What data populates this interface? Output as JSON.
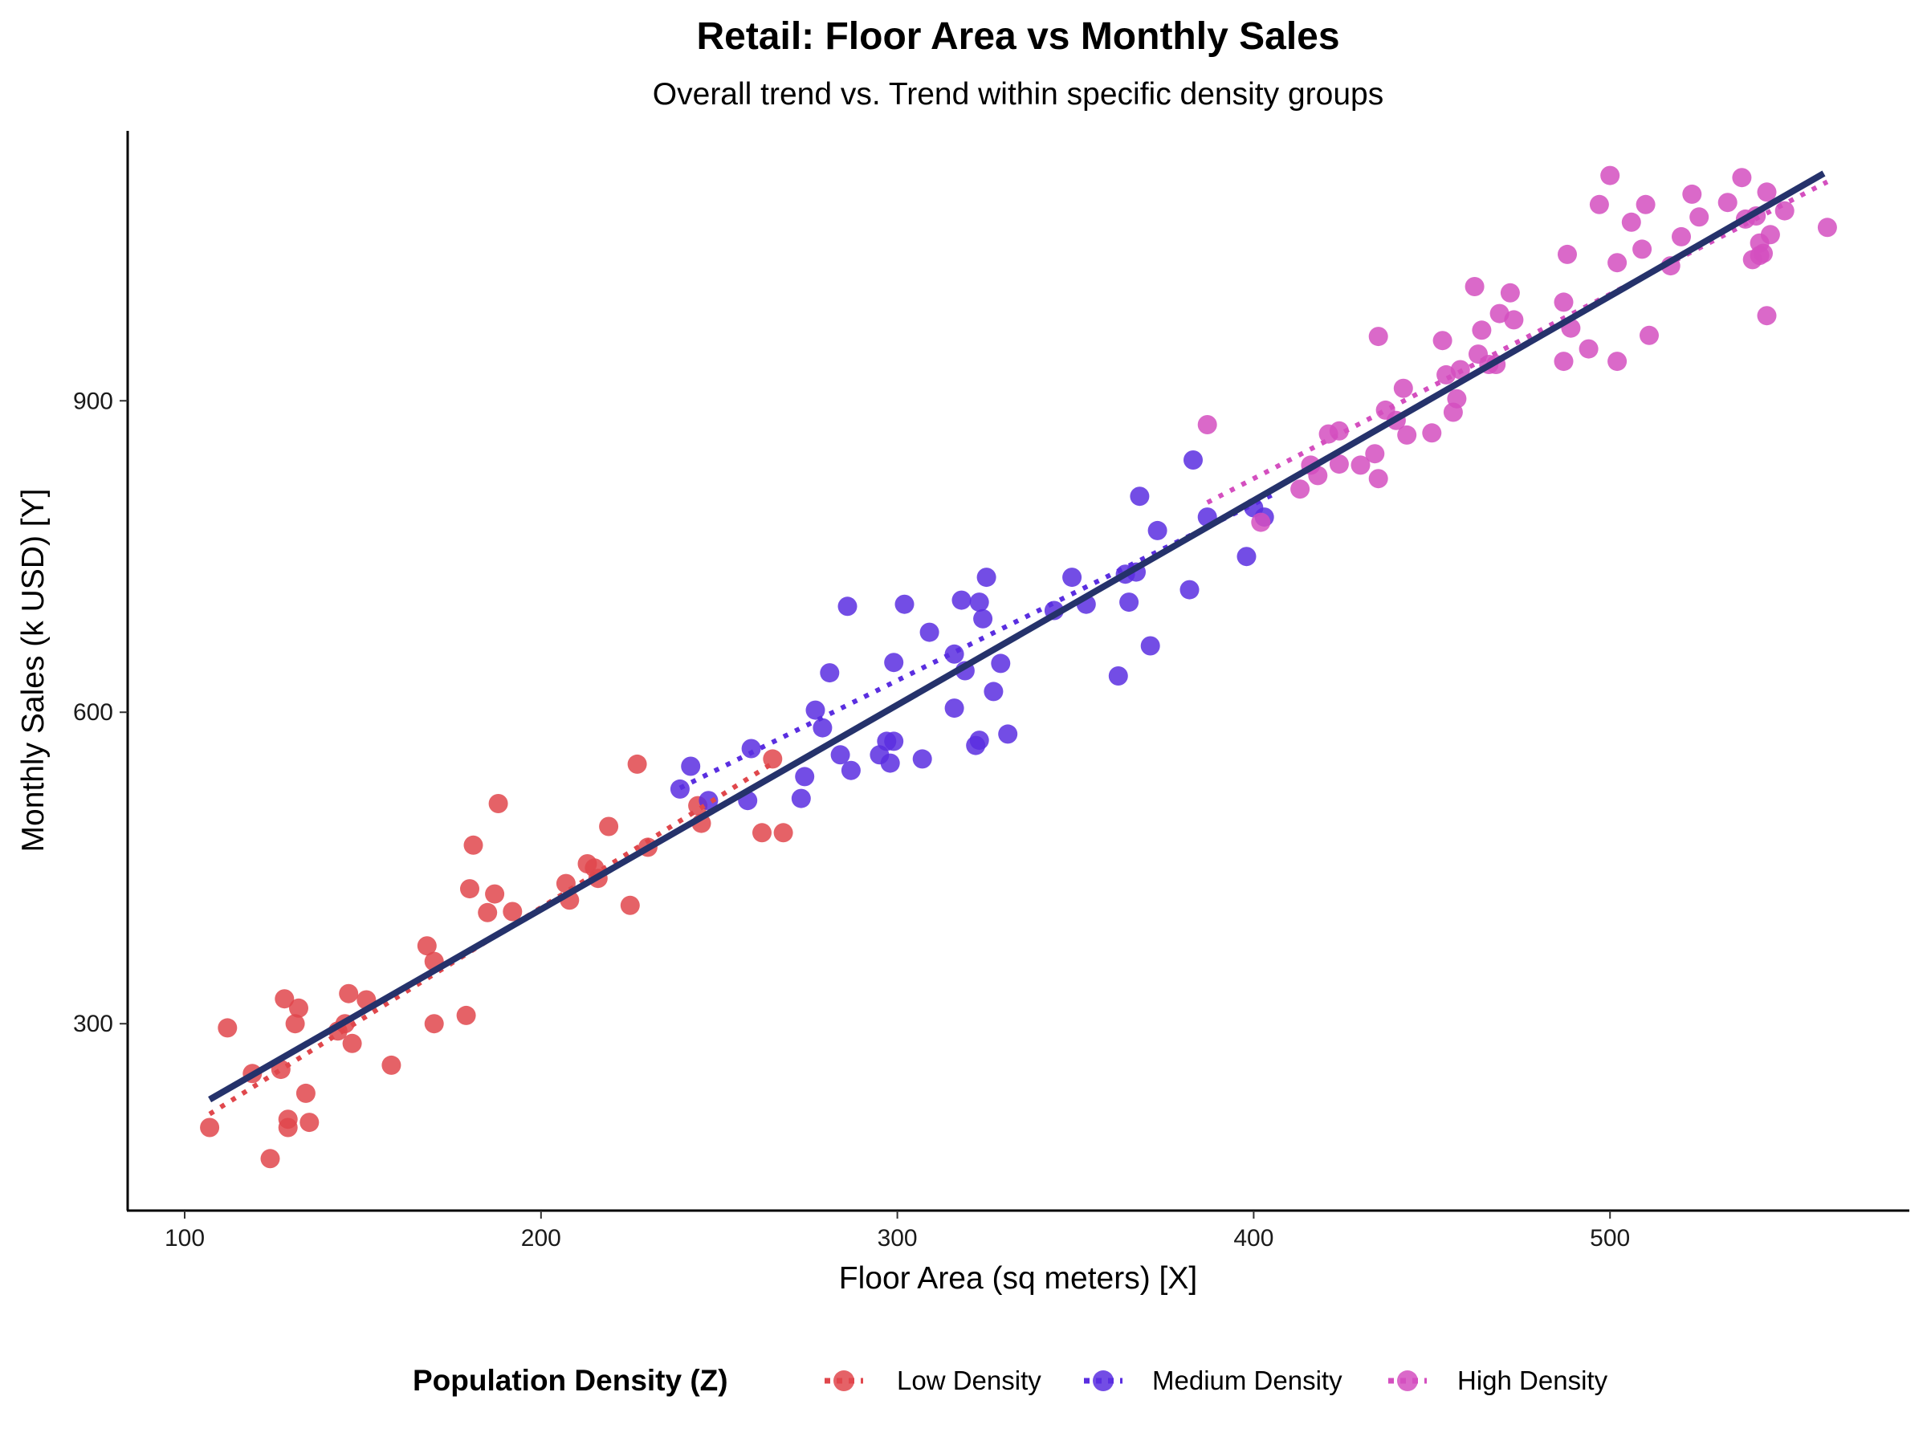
{
  "chart_data": {
    "type": "scatter",
    "title": "Retail: Floor Area vs Monthly Sales",
    "subtitle": "Overall trend vs. Trend within specific density groups",
    "xlabel": "Floor Area (sq meters) [X]",
    "ylabel": "Monthly Sales (k USD) [Y]",
    "xlim": [
      84,
      584
    ],
    "ylim": [
      120,
      1160
    ],
    "x_ticks": [
      100,
      200,
      300,
      400,
      500
    ],
    "y_ticks": [
      300,
      600,
      900
    ],
    "x_tick_labels": [
      "100",
      "200",
      "300",
      "400",
      "500"
    ],
    "y_tick_labels": [
      "300",
      "600",
      "900"
    ],
    "grid": false,
    "legend_title": "Population Density (Z)",
    "legend_position": "bottom",
    "overall_trend": {
      "color": "#25326b",
      "x": [
        107,
        560
      ],
      "y": [
        227,
        1119
      ]
    },
    "series": [
      {
        "name": "Low Density",
        "color": "#e0474c",
        "trend": {
          "x": [
            107,
            266
          ],
          "y": [
            213,
            553
          ]
        },
        "points": [
          [
            107,
            200
          ],
          [
            112,
            296
          ],
          [
            119,
            252
          ],
          [
            124,
            170
          ],
          [
            127,
            256
          ],
          [
            128,
            324
          ],
          [
            129,
            200
          ],
          [
            129,
            208
          ],
          [
            131,
            300
          ],
          [
            132,
            315
          ],
          [
            134,
            233
          ],
          [
            135,
            205
          ],
          [
            143,
            293
          ],
          [
            145,
            300
          ],
          [
            146,
            329
          ],
          [
            147,
            281
          ],
          [
            151,
            323
          ],
          [
            158,
            260
          ],
          [
            168,
            375
          ],
          [
            170,
            300
          ],
          [
            170,
            360
          ],
          [
            179,
            308
          ],
          [
            180,
            430
          ],
          [
            181,
            472
          ],
          [
            185,
            407
          ],
          [
            187,
            425
          ],
          [
            188,
            512
          ],
          [
            192,
            408
          ],
          [
            207,
            435
          ],
          [
            208,
            419
          ],
          [
            213,
            454
          ],
          [
            215,
            450
          ],
          [
            216,
            440
          ],
          [
            219,
            490
          ],
          [
            225,
            414
          ],
          [
            227,
            550
          ],
          [
            230,
            470
          ],
          [
            244,
            510
          ],
          [
            245,
            493
          ],
          [
            262,
            484
          ],
          [
            265,
            555
          ],
          [
            268,
            484
          ]
        ]
      },
      {
        "name": "Medium Density",
        "color": "#5a2ee0",
        "trend": {
          "x": [
            239,
            405
          ],
          "y": [
            527,
            809
          ]
        },
        "points": [
          [
            239,
            526
          ],
          [
            242,
            548
          ],
          [
            247,
            515
          ],
          [
            258,
            515
          ],
          [
            259,
            565
          ],
          [
            273,
            517
          ],
          [
            274,
            538
          ],
          [
            277,
            602
          ],
          [
            279,
            585
          ],
          [
            281,
            638
          ],
          [
            284,
            559
          ],
          [
            286,
            702
          ],
          [
            287,
            544
          ],
          [
            295,
            559
          ],
          [
            297,
            572
          ],
          [
            298,
            551
          ],
          [
            299,
            572
          ],
          [
            299,
            648
          ],
          [
            302,
            704
          ],
          [
            307,
            555
          ],
          [
            309,
            677
          ],
          [
            316,
            604
          ],
          [
            316,
            656
          ],
          [
            318,
            708
          ],
          [
            319,
            640
          ],
          [
            322,
            568
          ],
          [
            323,
            573
          ],
          [
            323,
            706
          ],
          [
            324,
            690
          ],
          [
            325,
            730
          ],
          [
            327,
            620
          ],
          [
            329,
            647
          ],
          [
            331,
            579
          ],
          [
            344,
            698
          ],
          [
            349,
            730
          ],
          [
            353,
            704
          ],
          [
            362,
            635
          ],
          [
            364,
            733
          ],
          [
            365,
            706
          ],
          [
            367,
            735
          ],
          [
            368,
            808
          ],
          [
            371,
            664
          ],
          [
            373,
            775
          ],
          [
            382,
            718
          ],
          [
            383,
            843
          ],
          [
            387,
            788
          ],
          [
            398,
            750
          ],
          [
            400,
            797
          ],
          [
            403,
            788
          ]
        ]
      },
      {
        "name": "High Density",
        "color": "#d44fbf",
        "trend": {
          "x": [
            387,
            561
          ],
          "y": [
            802,
            1111
          ]
        },
        "points": [
          [
            387,
            877
          ],
          [
            402,
            783
          ],
          [
            413,
            815
          ],
          [
            416,
            838
          ],
          [
            418,
            828
          ],
          [
            421,
            868
          ],
          [
            424,
            871
          ],
          [
            424,
            839
          ],
          [
            430,
            838
          ],
          [
            434,
            849
          ],
          [
            435,
            825
          ],
          [
            435,
            962
          ],
          [
            437,
            891
          ],
          [
            440,
            881
          ],
          [
            442,
            912
          ],
          [
            443,
            867
          ],
          [
            450,
            869
          ],
          [
            453,
            958
          ],
          [
            454,
            925
          ],
          [
            456,
            889
          ],
          [
            457,
            902
          ],
          [
            458,
            930
          ],
          [
            462,
            1010
          ],
          [
            463,
            945
          ],
          [
            464,
            968
          ],
          [
            466,
            935
          ],
          [
            468,
            935
          ],
          [
            469,
            984
          ],
          [
            472,
            1004
          ],
          [
            473,
            978
          ],
          [
            487,
            938
          ],
          [
            487,
            995
          ],
          [
            488,
            1041
          ],
          [
            489,
            970
          ],
          [
            494,
            950
          ],
          [
            497,
            1089
          ],
          [
            500,
            1117
          ],
          [
            502,
            938
          ],
          [
            502,
            1033
          ],
          [
            506,
            1072
          ],
          [
            509,
            1046
          ],
          [
            510,
            1089
          ],
          [
            511,
            963
          ],
          [
            517,
            1030
          ],
          [
            520,
            1058
          ],
          [
            523,
            1099
          ],
          [
            525,
            1077
          ],
          [
            533,
            1091
          ],
          [
            537,
            1115
          ],
          [
            538,
            1075
          ],
          [
            540,
            1036
          ],
          [
            541,
            1078
          ],
          [
            542,
            1052
          ],
          [
            542,
            1040
          ],
          [
            543,
            1042
          ],
          [
            544,
            1101
          ],
          [
            544,
            982
          ],
          [
            545,
            1060
          ],
          [
            549,
            1083
          ],
          [
            561,
            1067
          ]
        ]
      }
    ]
  }
}
